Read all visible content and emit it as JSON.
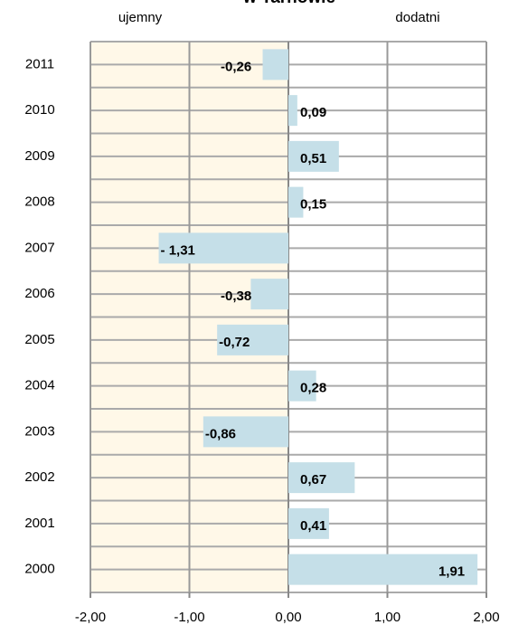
{
  "chart_data": {
    "type": "barh",
    "title": "w Tarnowie",
    "annotations": [
      "ujemny",
      "dodatni"
    ],
    "categories": [
      "2011",
      "2010",
      "2009",
      "2008",
      "2007",
      "2006",
      "2005",
      "2004",
      "2003",
      "2002",
      "2001",
      "2000"
    ],
    "values": [
      -0.26,
      0.09,
      0.51,
      0.15,
      -1.31,
      -0.38,
      -0.72,
      0.28,
      -0.86,
      0.67,
      0.41,
      1.91
    ],
    "value_labels": [
      "-0,26",
      "0,09",
      "0,51",
      "0,15",
      "- 1,31",
      "-0,38",
      "-0,72",
      "0,28",
      "-0,86",
      "0,67",
      "0,41",
      "1,91"
    ],
    "color": "#c5dfe8",
    "xlim": [
      -2,
      2
    ],
    "xticks": [
      {
        "value": -2,
        "label": "-2,00"
      },
      {
        "value": -1,
        "label": "-1,00"
      },
      {
        "value": 0,
        "label": "0,00"
      },
      {
        "value": 1,
        "label": "1,00"
      },
      {
        "value": 2,
        "label": "2,00"
      }
    ],
    "grid": true
  }
}
